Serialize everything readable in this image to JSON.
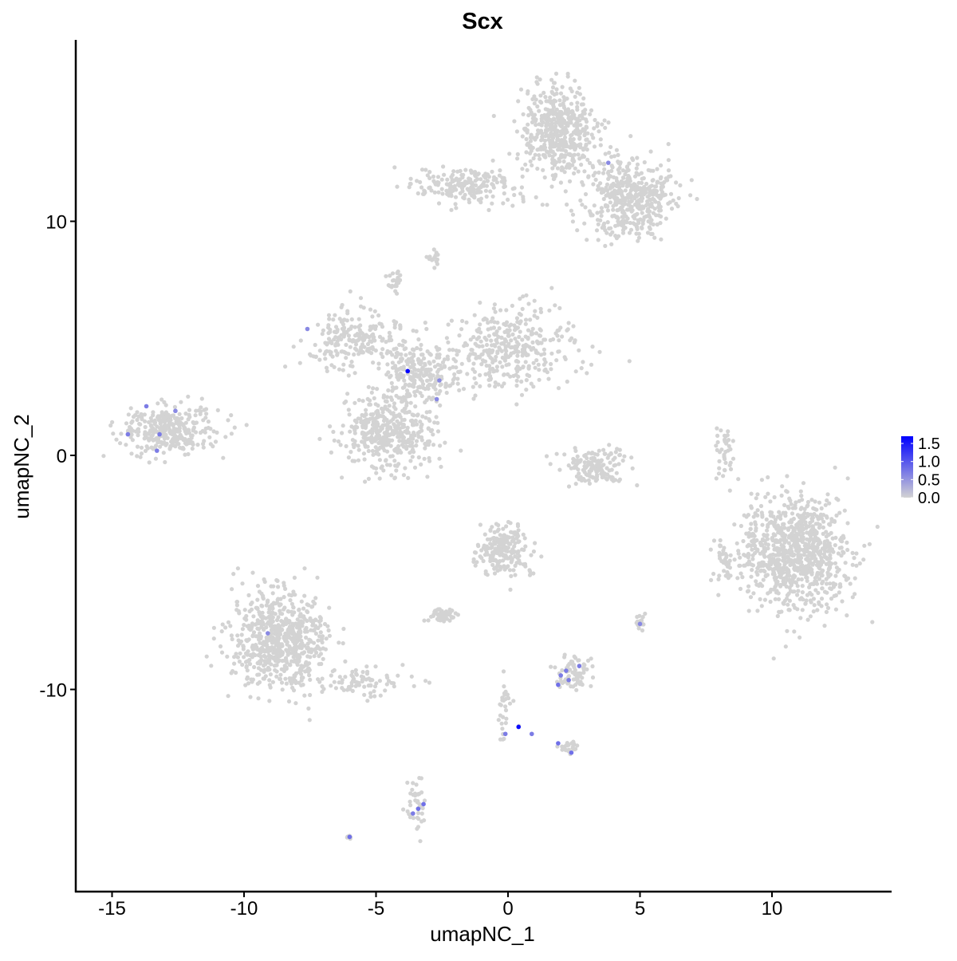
{
  "chart_data": {
    "type": "scatter",
    "title": "Scx",
    "xlabel": "umapNC_1",
    "ylabel": "umapNC_2",
    "xlim": [
      -16.4,
      14.5
    ],
    "ylim": [
      -18.6,
      17.8
    ],
    "xticks": [
      -15,
      -10,
      -5,
      0,
      5,
      10
    ],
    "yticks": [
      -10,
      0,
      10
    ],
    "grid": false,
    "color_scale": {
      "low": "#d3d3d3",
      "high": "#0000ff",
      "min": 0,
      "max": 1.7,
      "ticks": [
        "0.0",
        "0.5",
        "1.0",
        "1.5"
      ]
    },
    "legend_position": "right",
    "clusters": [
      {
        "center": [
          1.9,
          13.8
        ],
        "sd": [
          0.7,
          1.0
        ],
        "n": 500
      },
      {
        "center": [
          4.6,
          11.0
        ],
        "sd": [
          0.8,
          0.9
        ],
        "n": 450
      },
      {
        "center": [
          -1.5,
          11.5
        ],
        "sd": [
          1.0,
          0.35
        ],
        "n": 200
      },
      {
        "center": [
          -2.8,
          8.5
        ],
        "sd": [
          0.15,
          0.3
        ],
        "n": 15
      },
      {
        "center": [
          -4.3,
          7.4
        ],
        "sd": [
          0.15,
          0.2
        ],
        "n": 25
      },
      {
        "center": [
          -5.8,
          5.0
        ],
        "sd": [
          1.0,
          0.6
        ],
        "n": 220
      },
      {
        "center": [
          -3.5,
          3.5
        ],
        "sd": [
          0.6,
          0.6
        ],
        "n": 220
      },
      {
        "center": [
          0.0,
          4.5
        ],
        "sd": [
          1.3,
          0.8
        ],
        "n": 380
      },
      {
        "center": [
          -4.5,
          1.0
        ],
        "sd": [
          0.9,
          0.8
        ],
        "n": 420
      },
      {
        "center": [
          -12.8,
          1.1
        ],
        "sd": [
          0.9,
          0.5
        ],
        "n": 320
      },
      {
        "center": [
          3.3,
          -0.5
        ],
        "sd": [
          0.6,
          0.4
        ],
        "n": 150
      },
      {
        "center": [
          8.2,
          0.2
        ],
        "sd": [
          0.15,
          0.5
        ],
        "n": 40
      },
      {
        "center": [
          10.8,
          -4.2
        ],
        "sd": [
          1.0,
          1.2
        ],
        "n": 900
      },
      {
        "center": [
          8.1,
          -4.5
        ],
        "sd": [
          0.2,
          0.5
        ],
        "n": 30
      },
      {
        "center": [
          -8.7,
          -8.0
        ],
        "sd": [
          0.9,
          1.1
        ],
        "n": 700
      },
      {
        "center": [
          -5.5,
          -9.7
        ],
        "sd": [
          0.9,
          0.3
        ],
        "n": 80
      },
      {
        "center": [
          -0.2,
          -4.0
        ],
        "sd": [
          0.5,
          0.6
        ],
        "n": 200
      },
      {
        "center": [
          -2.5,
          -6.8
        ],
        "sd": [
          0.3,
          0.15
        ],
        "n": 60
      },
      {
        "center": [
          5.0,
          -7.1
        ],
        "sd": [
          0.1,
          0.15
        ],
        "n": 20
      },
      {
        "center": [
          2.5,
          -9.3
        ],
        "sd": [
          0.35,
          0.35
        ],
        "n": 80
      },
      {
        "center": [
          -0.1,
          -11.0
        ],
        "sd": [
          0.2,
          0.6
        ],
        "n": 30
      },
      {
        "center": [
          2.3,
          -12.5
        ],
        "sd": [
          0.2,
          0.15
        ],
        "n": 25
      },
      {
        "center": [
          -3.4,
          -14.8
        ],
        "sd": [
          0.2,
          0.6
        ],
        "n": 40
      },
      {
        "center": [
          -6.0,
          -16.3
        ],
        "sd": [
          0.05,
          0.03
        ],
        "n": 8
      }
    ],
    "expressing_points": [
      {
        "x": -3.8,
        "y": 3.6,
        "value": 1.7
      },
      {
        "x": 0.4,
        "y": -11.6,
        "value": 1.6
      },
      {
        "x": -2.6,
        "y": 3.2,
        "value": 0.6
      },
      {
        "x": -2.7,
        "y": 2.4,
        "value": 0.6
      },
      {
        "x": -7.6,
        "y": 5.4,
        "value": 0.6
      },
      {
        "x": 3.8,
        "y": 12.5,
        "value": 0.6
      },
      {
        "x": -13.7,
        "y": 2.1,
        "value": 0.7
      },
      {
        "x": -14.4,
        "y": 0.9,
        "value": 0.7
      },
      {
        "x": -13.2,
        "y": 0.9,
        "value": 0.7
      },
      {
        "x": -12.6,
        "y": 1.9,
        "value": 0.6
      },
      {
        "x": -13.3,
        "y": 0.2,
        "value": 0.7
      },
      {
        "x": -9.1,
        "y": -7.6,
        "value": 0.6
      },
      {
        "x": 5.0,
        "y": -7.2,
        "value": 0.6
      },
      {
        "x": 2.0,
        "y": -9.4,
        "value": 0.7
      },
      {
        "x": 2.3,
        "y": -9.6,
        "value": 0.7
      },
      {
        "x": 2.7,
        "y": -9.0,
        "value": 0.7
      },
      {
        "x": 1.9,
        "y": -9.8,
        "value": 0.8
      },
      {
        "x": 2.2,
        "y": -9.2,
        "value": 0.7
      },
      {
        "x": 0.9,
        "y": -11.9,
        "value": 0.7
      },
      {
        "x": 1.9,
        "y": -12.3,
        "value": 0.8
      },
      {
        "x": 2.4,
        "y": -12.7,
        "value": 0.8
      },
      {
        "x": -0.1,
        "y": -11.9,
        "value": 0.7
      },
      {
        "x": -3.2,
        "y": -14.9,
        "value": 0.8
      },
      {
        "x": -3.4,
        "y": -15.1,
        "value": 0.8
      },
      {
        "x": -3.6,
        "y": -15.3,
        "value": 0.7
      },
      {
        "x": -6.0,
        "y": -16.3,
        "value": 0.8
      }
    ]
  }
}
